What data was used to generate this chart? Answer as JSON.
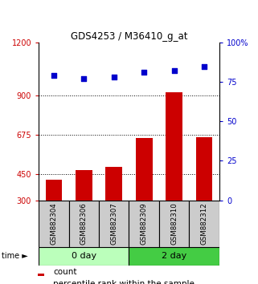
{
  "title": "GDS4253 / M36410_g_at",
  "samples": [
    "GSM882304",
    "GSM882306",
    "GSM882307",
    "GSM882309",
    "GSM882310",
    "GSM882312"
  ],
  "count_values": [
    415,
    470,
    490,
    655,
    915,
    660
  ],
  "percentile_values": [
    79,
    77,
    78,
    81,
    82,
    85
  ],
  "group0_color": "#bbffbb",
  "group2_color": "#44cc44",
  "bar_color": "#cc0000",
  "dot_color": "#0000cc",
  "left_ylim": [
    300,
    1200
  ],
  "left_yticks": [
    300,
    450,
    675,
    900,
    1200
  ],
  "right_ylim": [
    0,
    100
  ],
  "right_yticks": [
    0,
    25,
    50,
    75,
    100
  ],
  "right_yticklabels": [
    "0",
    "25",
    "50",
    "75",
    "100%"
  ],
  "hlines": [
    450,
    675,
    900
  ],
  "background_color": "#ffffff",
  "sample_box_color": "#cccccc",
  "figsize": [
    3.21,
    3.54
  ],
  "dpi": 100
}
